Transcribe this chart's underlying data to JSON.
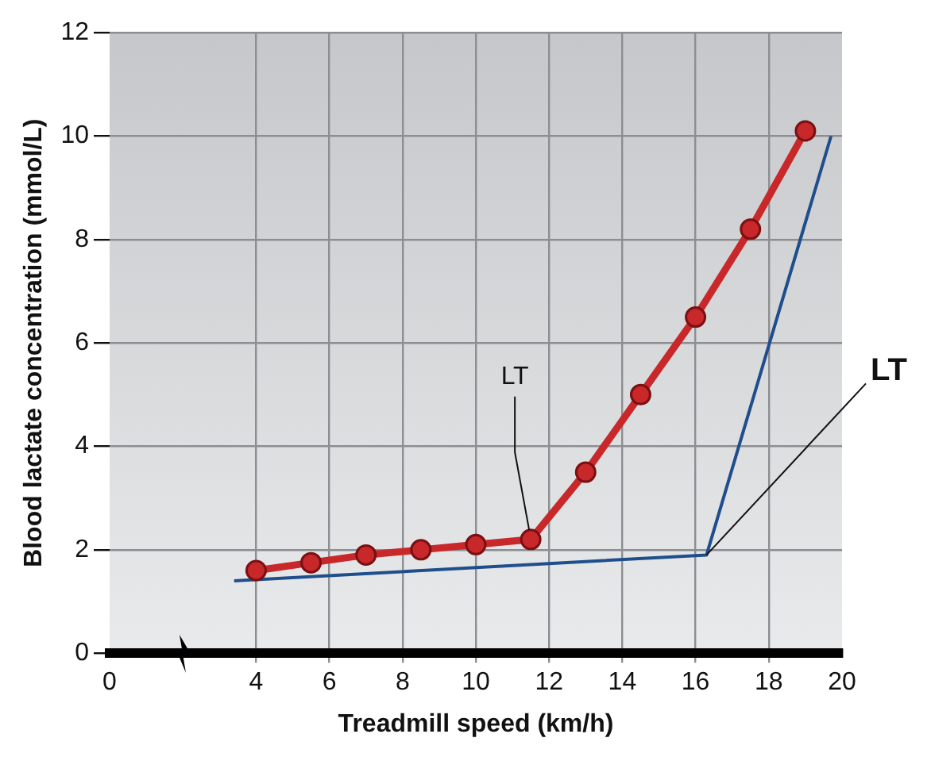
{
  "chart_data": {
    "type": "line",
    "xlabel": "Treadmill speed (km/h)",
    "ylabel": "Blood lactate concentration (mmol/L)",
    "xlim": [
      0,
      20
    ],
    "xticks": [
      0,
      4,
      6,
      8,
      10,
      12,
      14,
      16,
      18,
      20
    ],
    "ylim": [
      0,
      12
    ],
    "yticks": [
      0,
      2,
      4,
      6,
      8,
      10,
      12
    ],
    "grid": true,
    "legend": false,
    "series": [
      {
        "color": "#c8282a",
        "marker": "circle",
        "x": [
          4,
          5.5,
          7,
          8.5,
          10,
          11.5,
          13,
          14.5,
          16,
          17.5,
          19
        ],
        "values": [
          1.6,
          1.75,
          1.9,
          2.0,
          2.1,
          2.2,
          3.5,
          5.0,
          6.5,
          8.2,
          10.1
        ]
      },
      {
        "color": "#1f4e8c",
        "marker": "none",
        "x": [
          3.4,
          16.3,
          19.7
        ],
        "values": [
          1.4,
          1.9,
          10.0
        ]
      }
    ],
    "annotations": [
      {
        "text": "LT",
        "x": 11.5,
        "y": 2.2
      },
      {
        "text": "LT",
        "x": 16.3,
        "y": 1.9
      }
    ]
  }
}
